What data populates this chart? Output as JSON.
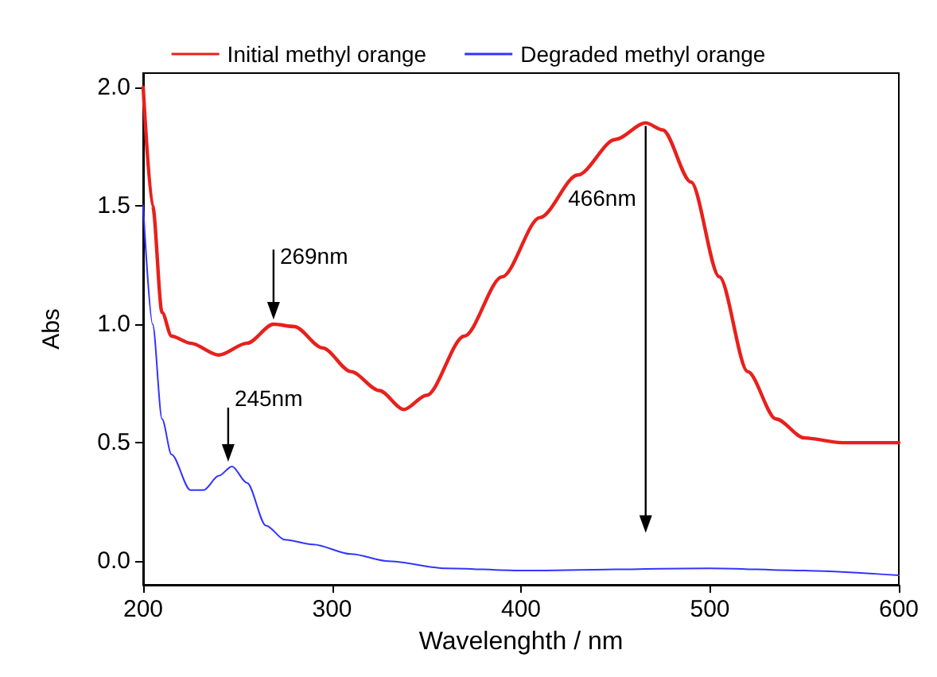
{
  "chart_data": {
    "type": "line",
    "xlabel": "Wavelenghth / nm",
    "ylabel": "Abs",
    "xlim": [
      200,
      600
    ],
    "xticks": [
      200,
      300,
      400,
      500,
      600
    ],
    "ylim": [
      -0.1,
      2.06
    ],
    "yticks": [
      {
        "value": 0,
        "label": "0.0"
      },
      {
        "value": 0.5,
        "label": "0.5"
      },
      {
        "value": 1,
        "label": "1.0"
      },
      {
        "value": 1.5,
        "label": "1.5"
      },
      {
        "value": 2,
        "label": "2.0"
      }
    ],
    "grid": false,
    "legend": "top",
    "marker": "none",
    "line_style": "solid",
    "series": [
      {
        "name": "Initial methyl orange",
        "color": "#e8201c",
        "x": [
          200,
          205,
          210,
          215,
          225,
          240,
          255,
          269,
          280,
          295,
          310,
          325,
          338,
          350,
          370,
          390,
          410,
          430,
          450,
          466,
          475,
          490,
          505,
          520,
          535,
          550,
          570,
          600
        ],
        "values": [
          2.0,
          1.5,
          1.05,
          0.95,
          0.92,
          0.87,
          0.92,
          1.0,
          0.99,
          0.9,
          0.8,
          0.72,
          0.64,
          0.7,
          0.95,
          1.2,
          1.45,
          1.63,
          1.78,
          1.85,
          1.82,
          1.6,
          1.2,
          0.8,
          0.6,
          0.52,
          0.5,
          0.5
        ]
      },
      {
        "name": "Degraded methyl orange",
        "color": "#3333ff",
        "x": [
          200,
          205,
          210,
          215,
          225,
          232,
          240,
          247,
          255,
          265,
          275,
          290,
          310,
          330,
          360,
          400,
          500,
          550,
          600
        ],
        "values": [
          1.5,
          1.0,
          0.6,
          0.45,
          0.3,
          0.3,
          0.36,
          0.4,
          0.33,
          0.15,
          0.09,
          0.07,
          0.03,
          0.0,
          -0.03,
          -0.04,
          -0.03,
          -0.04,
          -0.06
        ]
      }
    ],
    "annotations": [
      {
        "text": "269nm",
        "x": 269,
        "y": 1.02
      },
      {
        "text": "466nm",
        "x": 466,
        "y": 1.85
      },
      {
        "text": "245nm",
        "x": 245,
        "y": 0.42
      }
    ]
  }
}
